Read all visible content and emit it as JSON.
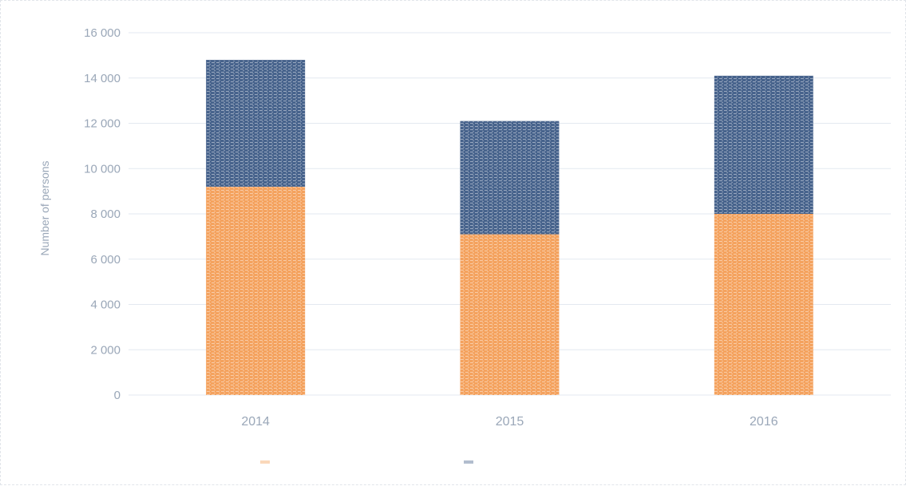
{
  "chart_data": {
    "type": "bar",
    "stacked": true,
    "categories": [
      "2014",
      "2015",
      "2016"
    ],
    "series": [
      {
        "name": "",
        "color": "#f28e3a",
        "values": [
          9200,
          7100,
          8000
        ]
      },
      {
        "name": "",
        "color": "#1f4173",
        "values": [
          5600,
          5000,
          6100
        ]
      }
    ],
    "title": "",
    "xlabel": "",
    "ylabel": "Number of persons",
    "ylim": [
      0,
      16000
    ],
    "yticks": [
      0,
      2000,
      4000,
      6000,
      8000,
      10000,
      12000,
      14000,
      16000
    ],
    "ytick_labels": [
      "0",
      "2 000",
      "4 000",
      "6 000",
      "8 000",
      "10 000",
      "12 000",
      "14 000",
      "16 000"
    ],
    "grid": true,
    "legend_position": "bottom"
  }
}
